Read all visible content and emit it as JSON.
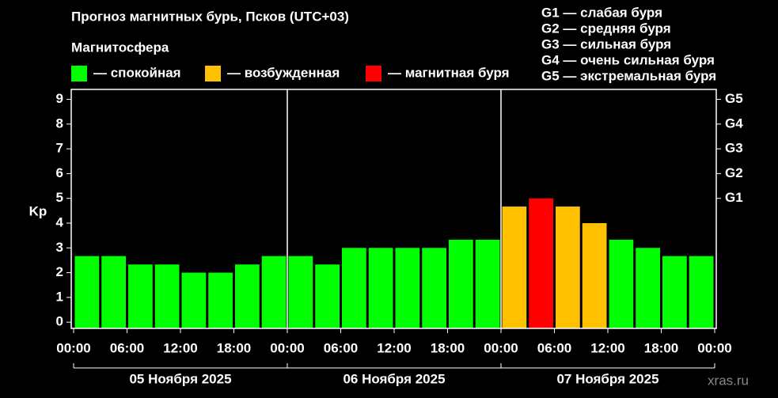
{
  "chart_data": {
    "type": "bar",
    "title": "Прогноз магнитных бурь, Псков (UTC+03)",
    "subtitle": "Магнитосфера",
    "legend": [
      {
        "name": "— спокойная",
        "color": "#00ff00"
      },
      {
        "name": "— возбужденная",
        "color": "#ffc000"
      },
      {
        "name": "— магнитная буря",
        "color": "#ff0000"
      }
    ],
    "scale_notes": [
      "G1 — слабая буря",
      "G2 — средняя буря",
      "G3 — сильная буря",
      "G4 — очень сильная буря",
      "G5 — экстремальная буря"
    ],
    "y_label": "Kp",
    "watermark": "xras.ru",
    "x": [
      1.5,
      4.5,
      7.5,
      10.5,
      13.5,
      16.5,
      19.5,
      22.5,
      25.5,
      28.5,
      31.5,
      34.5,
      37.5,
      40.5,
      43.5,
      46.5,
      49.5,
      52.5,
      55.5,
      58.5,
      61.5,
      64.5,
      67.5,
      70.5
    ],
    "values": [
      2.67,
      2.67,
      2.33,
      2.33,
      2,
      2,
      2.33,
      2.67,
      2.67,
      2.33,
      3,
      3,
      3,
      3,
      3.33,
      3.33,
      4.67,
      5,
      4.67,
      4,
      3.33,
      3,
      2.67,
      2.67
    ],
    "colors": [
      "#00ff00",
      "#00ff00",
      "#00ff00",
      "#00ff00",
      "#00ff00",
      "#00ff00",
      "#00ff00",
      "#00ff00",
      "#00ff00",
      "#00ff00",
      "#00ff00",
      "#00ff00",
      "#00ff00",
      "#00ff00",
      "#00ff00",
      "#00ff00",
      "#ffc000",
      "#ff0000",
      "#ffc000",
      "#ffc000",
      "#00ff00",
      "#00ff00",
      "#00ff00",
      "#00ff00"
    ],
    "xlim": [
      0,
      72
    ],
    "xticks": [
      {
        "value": 0,
        "label": "00:00"
      },
      {
        "value": 6,
        "label": "06:00"
      },
      {
        "value": 12,
        "label": "12:00"
      },
      {
        "value": 18,
        "label": "18:00"
      },
      {
        "value": 24,
        "label": "00:00"
      },
      {
        "value": 30,
        "label": "06:00"
      },
      {
        "value": 36,
        "label": "12:00"
      },
      {
        "value": 42,
        "label": "18:00"
      },
      {
        "value": 48,
        "label": "00:00"
      },
      {
        "value": 54,
        "label": "06:00"
      },
      {
        "value": 60,
        "label": "12:00"
      },
      {
        "value": 66,
        "label": "18:00"
      },
      {
        "value": 72,
        "label": "00:00"
      }
    ],
    "day_separators": [
      24,
      48
    ],
    "days": [
      {
        "label": "05 Ноября 2025",
        "start": 0,
        "end": 24
      },
      {
        "label": "06 Ноября 2025",
        "start": 24,
        "end": 48
      },
      {
        "label": "07 Ноября 2025",
        "start": 48,
        "end": 72
      }
    ],
    "ylim": [
      -0.25,
      9.4
    ],
    "yticks": [
      0,
      1,
      2,
      3,
      4,
      5,
      6,
      7,
      8,
      9
    ],
    "y2ticks": [
      {
        "value": 5,
        "label": "G1"
      },
      {
        "value": 6,
        "label": "G2"
      },
      {
        "value": 7,
        "label": "G3"
      },
      {
        "value": 8,
        "label": "G4"
      },
      {
        "value": 9,
        "label": "G5"
      }
    ]
  }
}
